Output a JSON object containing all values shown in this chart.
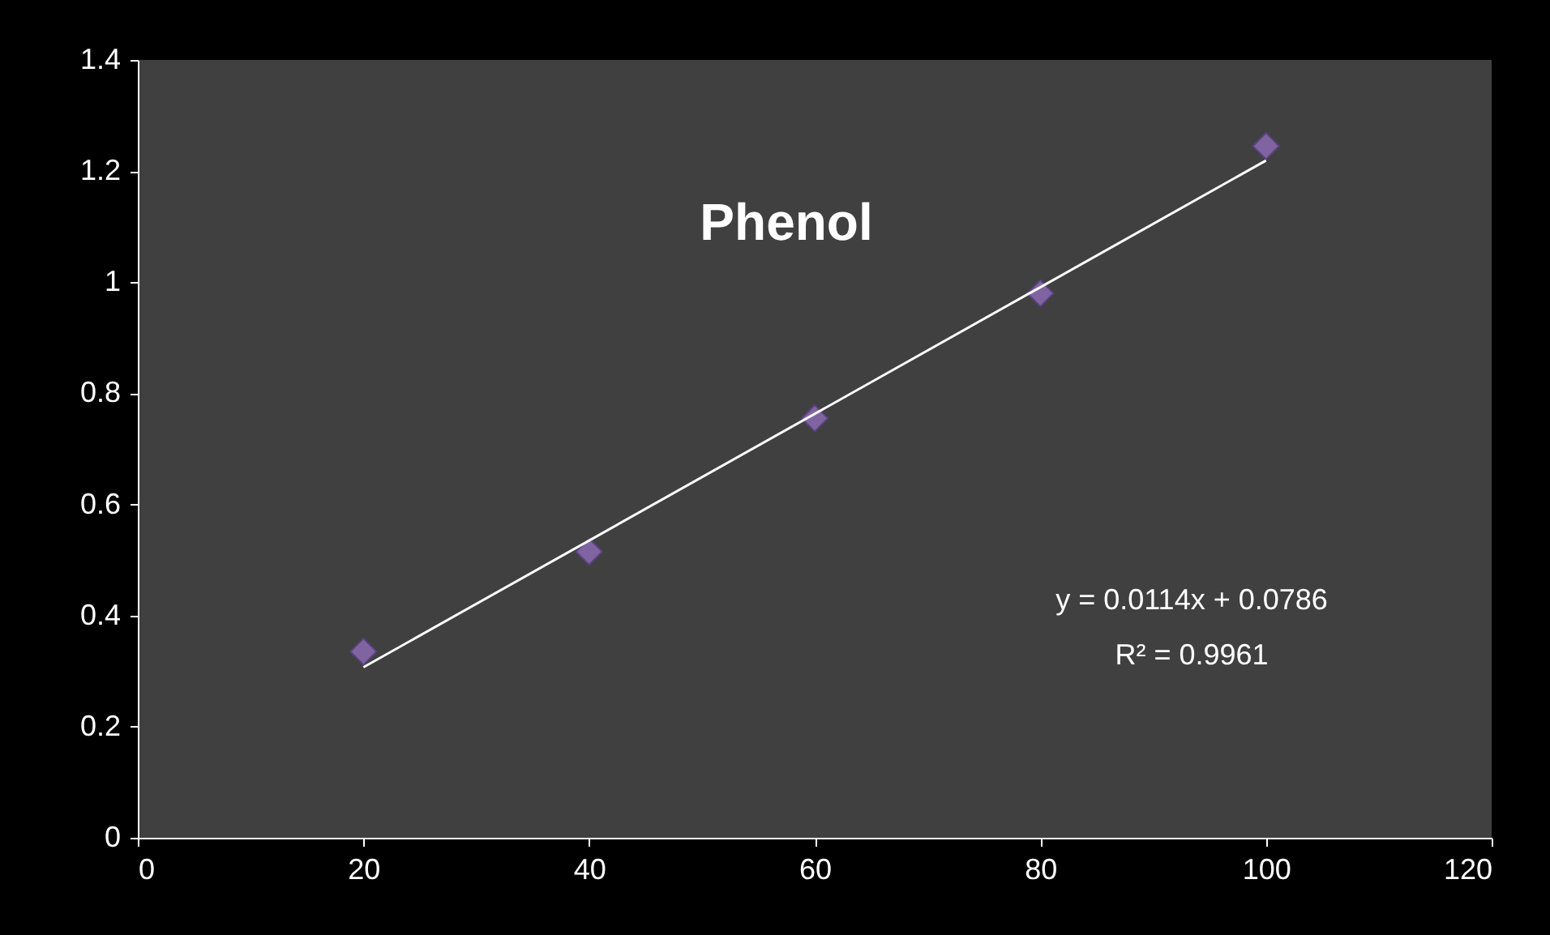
{
  "chart_data": {
    "type": "scatter",
    "title": "Phenol",
    "series": [
      {
        "type": "scatter",
        "color": "#8064a2",
        "x": [
          20,
          40,
          60,
          80,
          100
        ],
        "values": [
          0.335,
          0.515,
          0.755,
          0.98,
          1.245
        ],
        "marker": "diamond"
      },
      {
        "type": "line",
        "color": "#ffffff",
        "x": [
          20,
          100
        ],
        "values": [
          0.307,
          1.219
        ],
        "marker": "none",
        "line_style": "solid"
      }
    ],
    "xlim": [
      0,
      120
    ],
    "xticks": [
      0,
      20,
      40,
      60,
      80,
      100,
      120
    ],
    "ylim": [
      0,
      1.4
    ],
    "yticks": [
      0,
      0.2,
      0.4,
      0.6,
      0.8,
      1,
      1.2,
      1.4
    ],
    "annotations": [
      "y = 0.0114x + 0.0786",
      "R² = 0.9961"
    ]
  }
}
